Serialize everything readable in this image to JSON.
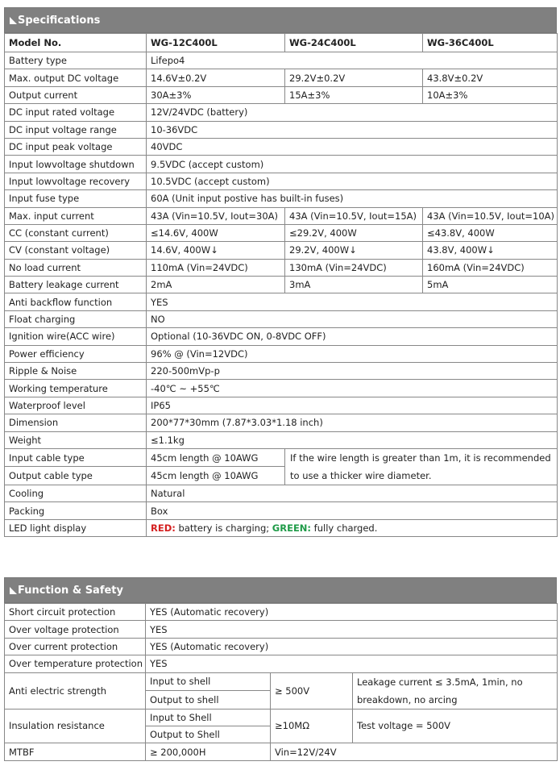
{
  "specifications": {
    "title": "Specifications",
    "model_label": "Model No.",
    "models": [
      "WG-12C400L",
      "WG-24C400L",
      "WG-36C400L"
    ],
    "rows": [
      {
        "label": "Battery type",
        "values": [
          "Lifepo4"
        ]
      },
      {
        "label": "Max. output DC voltage",
        "values": [
          "14.6V±0.2V",
          "29.2V±0.2V",
          "43.8V±0.2V"
        ]
      },
      {
        "label": "Output current",
        "values": [
          "30A±3%",
          "15A±3%",
          "10A±3%"
        ]
      },
      {
        "label": "DC input rated voltage",
        "values": [
          "12V/24VDC (battery)"
        ]
      },
      {
        "label": "DC input voltage range",
        "values": [
          "10-36VDC"
        ]
      },
      {
        "label": "DC input peak voltage",
        "values": [
          "40VDC"
        ]
      },
      {
        "label": "Input lowvoltage shutdown",
        "values": [
          "9.5VDC (accept custom)"
        ]
      },
      {
        "label": "Input lowvoltage recovery",
        "values": [
          "10.5VDC (accept custom)"
        ]
      },
      {
        "label": "Input fuse type",
        "values": [
          "60A (Unit input postive has built-in fuses)"
        ]
      },
      {
        "label": "Max. input current",
        "values": [
          "43A (Vin=10.5V, Iout=30A)",
          "43A (Vin=10.5V, Iout=15A)",
          "43A (Vin=10.5V, Iout=10A)"
        ]
      },
      {
        "label": "CC (constant current)",
        "values": [
          "≤14.6V, 400W",
          "≤29.2V, 400W",
          "≤43.8V, 400W"
        ]
      },
      {
        "label": "CV (constant voltage)",
        "values": [
          "14.6V, 400W↓",
          "29.2V, 400W↓",
          "43.8V, 400W↓"
        ]
      },
      {
        "label": "No load current",
        "values": [
          "110mA (Vin=24VDC)",
          "130mA (Vin=24VDC)",
          "160mA (Vin=24VDC)"
        ]
      },
      {
        "label": "Battery leakage current",
        "values": [
          "2mA",
          "3mA",
          "5mA"
        ]
      },
      {
        "label": "Anti backflow function",
        "values": [
          "YES"
        ]
      },
      {
        "label": "Float charging",
        "values": [
          "NO"
        ]
      },
      {
        "label": "Ignition wire(ACC wire)",
        "values": [
          "Optional (10-36VDC ON, 0-8VDC OFF)"
        ]
      },
      {
        "label": "Power efficiency",
        "values": [
          "96% @ (Vin=12VDC)"
        ]
      },
      {
        "label": "Ripple & Noise",
        "values": [
          "220-500mVp-p"
        ]
      },
      {
        "label": "Working temperature",
        "values": [
          "-40℃ ~ +55℃"
        ]
      },
      {
        "label": "Waterproof level",
        "values": [
          "IP65"
        ]
      },
      {
        "label": "Dimension",
        "values": [
          "200*77*30mm (7.87*3.03*1.18 inch)"
        ]
      },
      {
        "label": "Weight",
        "values": [
          "≤1.1kg"
        ]
      },
      {
        "label": "Input cable type",
        "values": [
          "45cm length @ 10AWG"
        ]
      },
      {
        "label": "Output cable type",
        "values": [
          "45cm length @ 10AWG"
        ]
      },
      {
        "label": "Cooling",
        "values": [
          "Natural"
        ]
      },
      {
        "label": "Packing",
        "values": [
          "Box"
        ]
      }
    ],
    "cable_note": "If the wire length is greater than 1m, it is recommended to use a thicker wire diameter.",
    "led": {
      "label": "LED light display",
      "red_label": "RED:",
      "red_text": " battery is charging; ",
      "green_label": "GREEN:",
      "green_text": " fully charged.",
      "red_color": "#d42020",
      "green_color": "#1f9b48"
    }
  },
  "function_safety": {
    "title": "Function & Safety",
    "rows": [
      {
        "label": "Short circuit protection",
        "value": "YES (Automatic recovery)"
      },
      {
        "label": "Over voltage protection",
        "value": "YES"
      },
      {
        "label": "Over current protection",
        "value": "YES (Automatic recovery)"
      },
      {
        "label": "Over temperature protection",
        "value": "YES"
      }
    ],
    "anti_electric": {
      "label": "Anti electric strength",
      "sub": [
        "Input to shell",
        "Output to shell"
      ],
      "value": "≥ 500V",
      "note": "Leakage current ≤ 3.5mA, 1min, no breakdown, no arcing"
    },
    "insulation": {
      "label": "Insulation resistance",
      "sub": [
        "Input to Shell",
        "Output to Shell"
      ],
      "value": "≥10MΩ",
      "note": "Test voltage = 500V"
    },
    "mtbf": {
      "label": "MTBF",
      "value": "≥ 200,000H",
      "condition": "Vin=12V/24V"
    }
  },
  "colors": {
    "header_bg": "#808080",
    "border": "#888888"
  }
}
